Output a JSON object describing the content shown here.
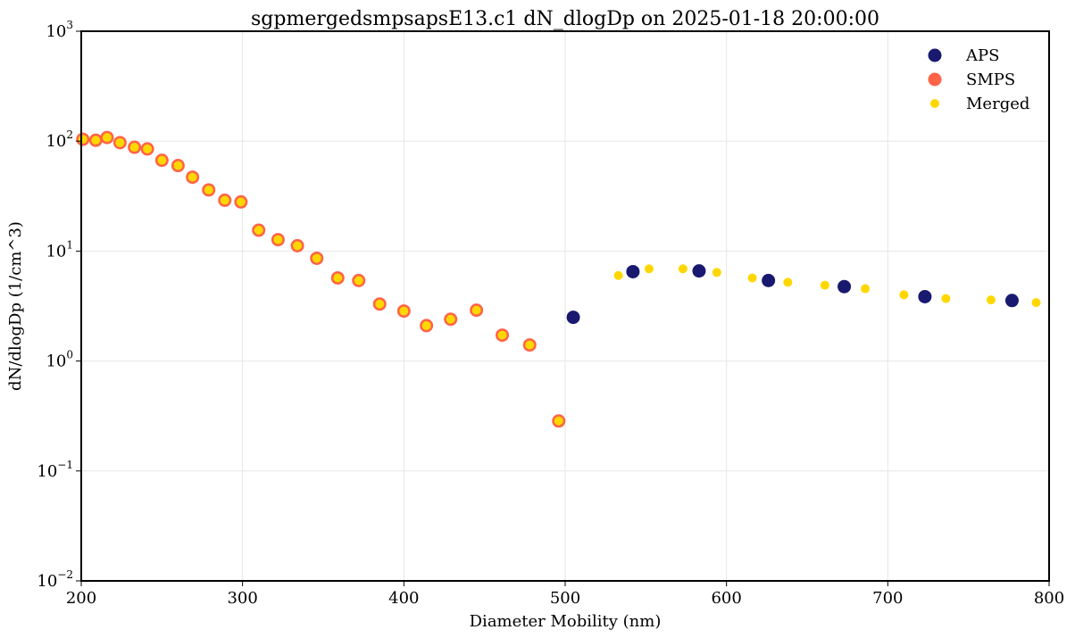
{
  "chart_data": {
    "type": "scatter",
    "title": "sgpmergedsmpsapsE13.c1 dN_dlogDp on 2025-01-18 20:00:00",
    "xlabel": "Diameter Mobility (nm)",
    "ylabel": "dN/dlogDp (1/cm^3)",
    "xlim": [
      200,
      800
    ],
    "ylim": [
      0.01,
      1000
    ],
    "yscale": "log",
    "grid": true,
    "legend_position": "top-right",
    "x_ticks": [
      {
        "value": 200,
        "label": "200"
      },
      {
        "value": 300,
        "label": "300"
      },
      {
        "value": 400,
        "label": "400"
      },
      {
        "value": 500,
        "label": "500"
      },
      {
        "value": 600,
        "label": "600"
      },
      {
        "value": 700,
        "label": "700"
      },
      {
        "value": 800,
        "label": "800"
      }
    ],
    "y_ticks": [
      {
        "value": 0.01,
        "base": "10",
        "exp": "−2"
      },
      {
        "value": 0.1,
        "base": "10",
        "exp": "−1"
      },
      {
        "value": 1,
        "base": "10",
        "exp": "0"
      },
      {
        "value": 10,
        "base": "10",
        "exp": "1"
      },
      {
        "value": 100,
        "base": "10",
        "exp": "2"
      },
      {
        "value": 1000,
        "base": "10",
        "exp": "3"
      }
    ],
    "series": [
      {
        "name": "APS",
        "color": "#191970",
        "points": [
          [
            505,
            2.5
          ],
          [
            542,
            6.5
          ],
          [
            583,
            6.6
          ],
          [
            626,
            5.4
          ],
          [
            673,
            4.75
          ],
          [
            723,
            3.85
          ],
          [
            777,
            3.55
          ]
        ]
      },
      {
        "name": "SMPS",
        "color": "#FF6347",
        "points": [
          [
            201,
            104
          ],
          [
            209,
            102
          ],
          [
            216,
            108
          ],
          [
            224,
            97
          ],
          [
            233,
            88
          ],
          [
            241,
            85
          ],
          [
            250,
            67
          ],
          [
            260,
            60
          ],
          [
            269,
            47
          ],
          [
            279,
            36
          ],
          [
            289,
            29
          ],
          [
            299,
            28
          ],
          [
            310,
            15.5
          ],
          [
            322,
            12.7
          ],
          [
            334,
            11.2
          ],
          [
            346,
            8.6
          ],
          [
            359,
            5.7
          ],
          [
            372,
            5.4
          ],
          [
            385,
            3.3
          ],
          [
            400,
            2.85
          ],
          [
            414,
            2.1
          ],
          [
            429,
            2.4
          ],
          [
            445,
            2.9
          ],
          [
            461,
            1.72
          ],
          [
            478,
            1.4
          ],
          [
            496,
            0.285
          ]
        ]
      },
      {
        "name": "Merged",
        "color": "#FFD700",
        "points": [
          [
            201,
            104
          ],
          [
            209,
            102
          ],
          [
            216,
            108
          ],
          [
            224,
            97
          ],
          [
            233,
            88
          ],
          [
            241,
            85
          ],
          [
            250,
            67
          ],
          [
            260,
            60
          ],
          [
            269,
            47
          ],
          [
            279,
            36
          ],
          [
            289,
            29
          ],
          [
            299,
            28
          ],
          [
            310,
            15.5
          ],
          [
            322,
            12.7
          ],
          [
            334,
            11.2
          ],
          [
            346,
            8.6
          ],
          [
            359,
            5.7
          ],
          [
            372,
            5.4
          ],
          [
            385,
            3.3
          ],
          [
            400,
            2.85
          ],
          [
            414,
            2.1
          ],
          [
            429,
            2.4
          ],
          [
            445,
            2.9
          ],
          [
            461,
            1.72
          ],
          [
            478,
            1.4
          ],
          [
            496,
            0.285
          ],
          [
            533,
            6.0
          ],
          [
            552,
            6.9
          ],
          [
            573,
            6.9
          ],
          [
            594,
            6.4
          ],
          [
            616,
            5.7
          ],
          [
            638,
            5.2
          ],
          [
            661,
            4.9
          ],
          [
            686,
            4.55
          ],
          [
            710,
            4.0
          ],
          [
            736,
            3.7
          ],
          [
            764,
            3.6
          ],
          [
            792,
            3.4
          ]
        ]
      }
    ]
  }
}
